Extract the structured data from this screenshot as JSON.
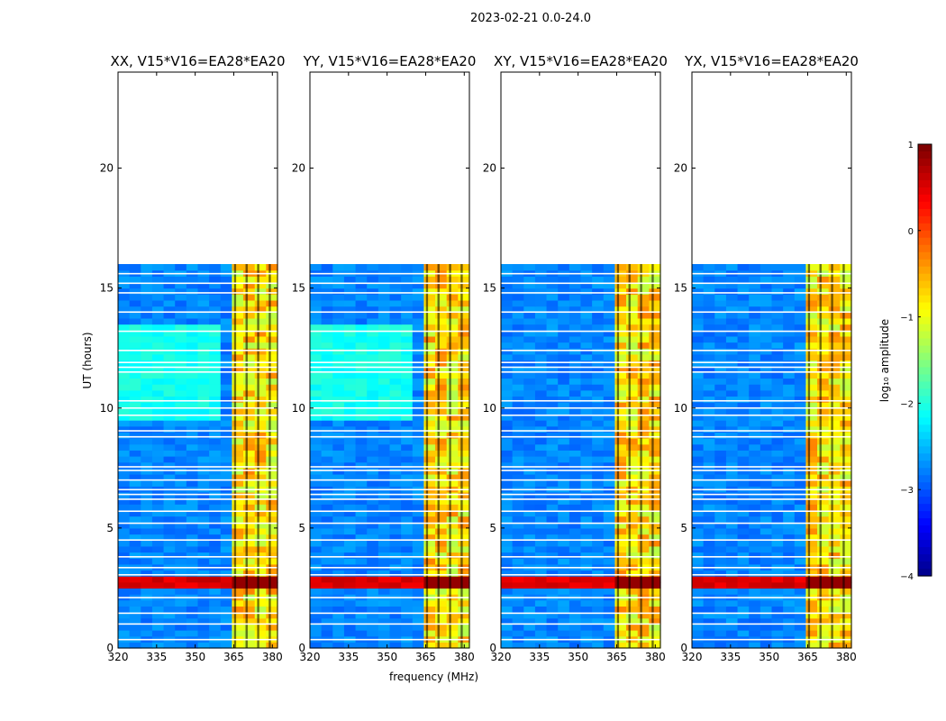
{
  "chart_data": {
    "type": "heatmap",
    "suptitle": "2023-02-21 0.0-24.0",
    "xlabel": "frequency (MHz)",
    "ylabel": "UT (hours)",
    "xlim": [
      320,
      382
    ],
    "ylim": [
      0,
      24
    ],
    "xticks": [
      "320",
      "335",
      "350",
      "365",
      "380"
    ],
    "yticks": [
      "0",
      "5",
      "10",
      "15",
      "20"
    ],
    "data_extent_hours": [
      0,
      16
    ],
    "rfi_band_mhz": [
      363,
      381
    ],
    "panels": [
      {
        "title": "XX, V15*V16=EA28*EA20"
      },
      {
        "title": "YY, V15*V16=EA28*EA20"
      },
      {
        "title": "XY, V15*V16=EA28*EA20"
      },
      {
        "title": "YX, V15*V16=EA28*EA20"
      }
    ],
    "colorbar": {
      "label": "log₁₀ amplitude",
      "range": [
        -4,
        1
      ],
      "ticks": [
        "1",
        "0",
        "−1",
        "−2",
        "−3",
        "−4"
      ],
      "colormap": "jet"
    }
  }
}
